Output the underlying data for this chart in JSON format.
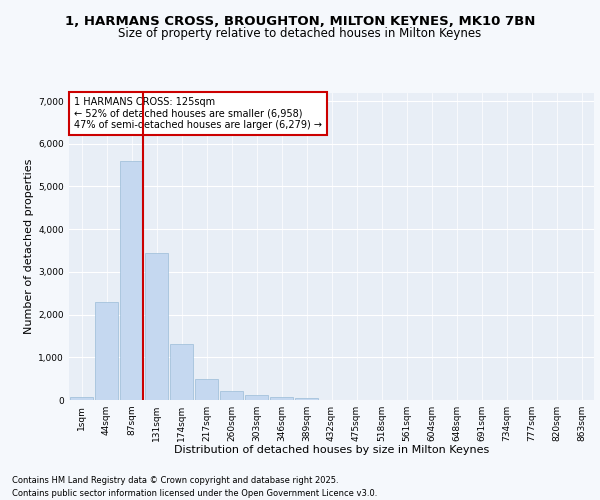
{
  "title_line1": "1, HARMANS CROSS, BROUGHTON, MILTON KEYNES, MK10 7BN",
  "title_line2": "Size of property relative to detached houses in Milton Keynes",
  "xlabel": "Distribution of detached houses by size in Milton Keynes",
  "ylabel": "Number of detached properties",
  "categories": [
    "1sqm",
    "44sqm",
    "87sqm",
    "131sqm",
    "174sqm",
    "217sqm",
    "260sqm",
    "303sqm",
    "346sqm",
    "389sqm",
    "432sqm",
    "475sqm",
    "518sqm",
    "561sqm",
    "604sqm",
    "648sqm",
    "691sqm",
    "734sqm",
    "777sqm",
    "820sqm",
    "863sqm"
  ],
  "values": [
    70,
    2300,
    5600,
    3450,
    1320,
    500,
    215,
    115,
    60,
    40,
    5,
    0,
    0,
    0,
    0,
    0,
    0,
    0,
    0,
    0,
    0
  ],
  "bar_color": "#c5d8f0",
  "bar_edge_color": "#9bbcd8",
  "vline_color": "#cc0000",
  "vline_x_index": 2,
  "annotation_text": "1 HARMANS CROSS: 125sqm\n← 52% of detached houses are smaller (6,958)\n47% of semi-detached houses are larger (6,279) →",
  "annotation_box_edgecolor": "#cc0000",
  "ylim": [
    0,
    7200
  ],
  "yticks": [
    0,
    1000,
    2000,
    3000,
    4000,
    5000,
    6000,
    7000
  ],
  "plot_bg_color": "#e8eef6",
  "fig_bg_color": "#f5f8fc",
  "grid_color": "#ffffff",
  "footnote_line1": "Contains HM Land Registry data © Crown copyright and database right 2025.",
  "footnote_line2": "Contains public sector information licensed under the Open Government Licence v3.0.",
  "title_fontsize": 9.5,
  "subtitle_fontsize": 8.5,
  "axis_label_fontsize": 8,
  "tick_fontsize": 6.5,
  "annotation_fontsize": 7,
  "footnote_fontsize": 6
}
